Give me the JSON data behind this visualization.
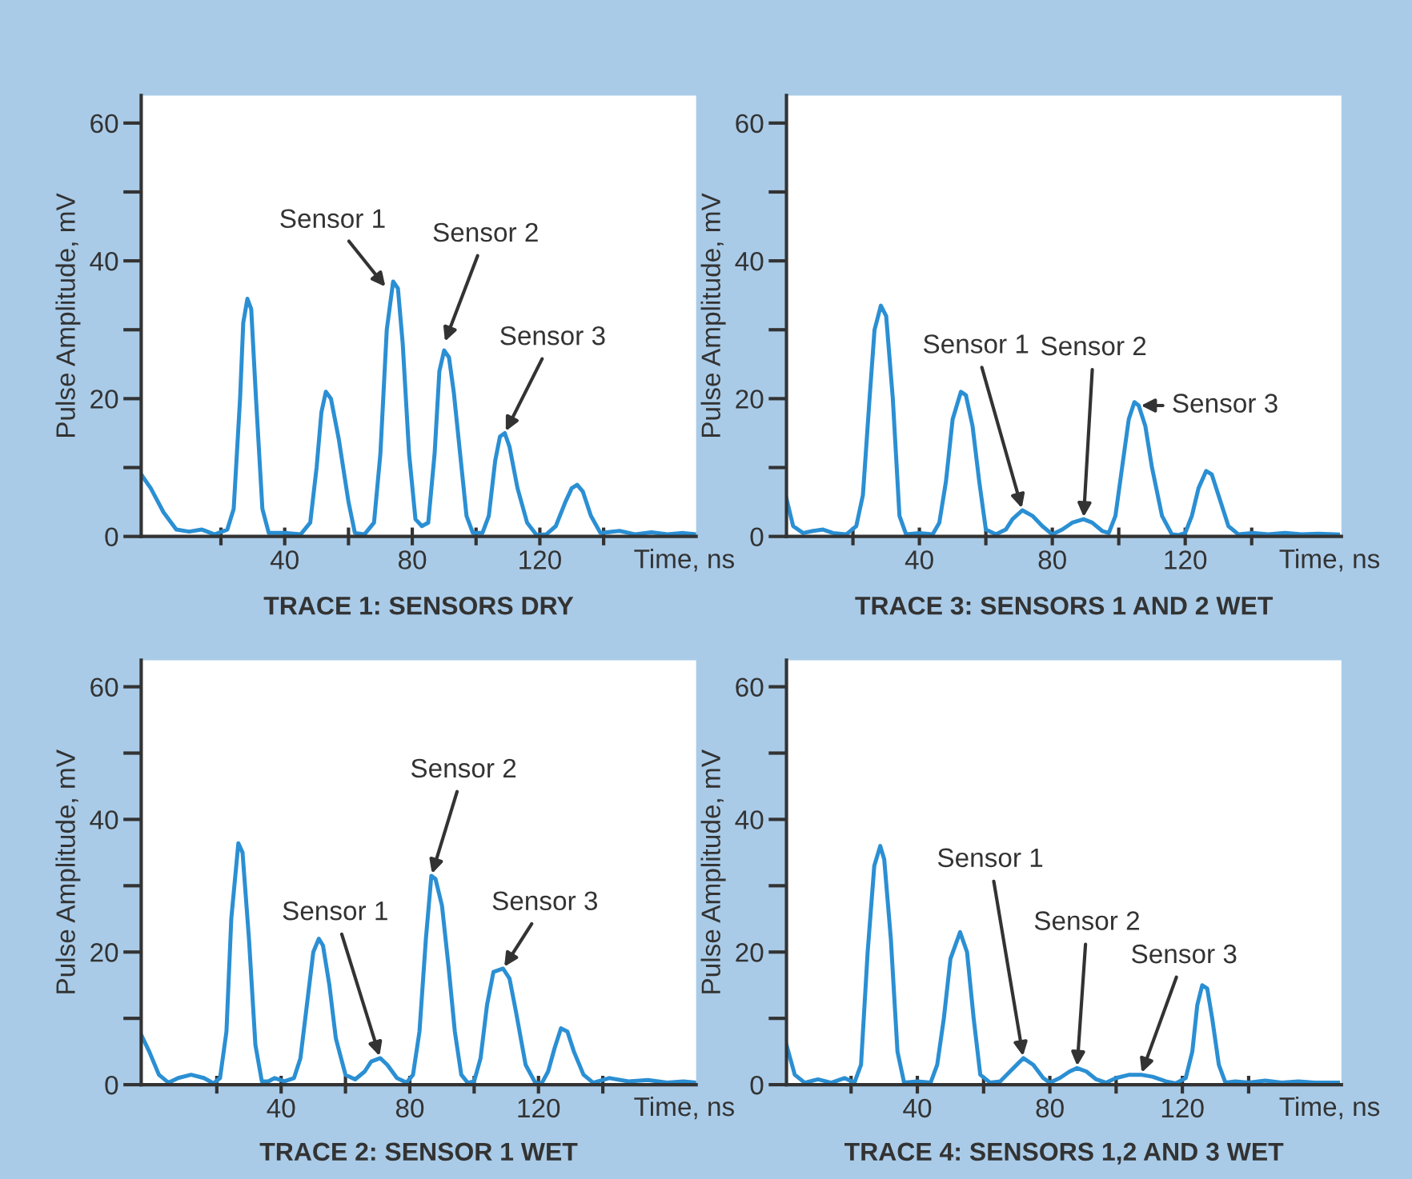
{
  "chart_data": [
    {
      "type": "line",
      "title": "TRACE 1: SENSORS DRY",
      "xlabel": "Time, ns",
      "ylabel": "Pulse Amplitude, mV",
      "xlim": [
        -5,
        169
      ],
      "ylim": [
        0,
        64
      ],
      "xticks": [
        {
          "value": 20,
          "label": null
        },
        40,
        {
          "value": 60,
          "label": null
        },
        80,
        {
          "value": 100,
          "label": null
        },
        120,
        {
          "value": 140,
          "label": null
        }
      ],
      "yticks": [
        0,
        {
          "value": 10,
          "label": null
        },
        20,
        {
          "value": 30,
          "label": null
        },
        40,
        {
          "value": 50,
          "label": null
        },
        60
      ],
      "grid": false,
      "legend": false,
      "marker": "none",
      "line_style": "solid",
      "series": [
        {
          "color": "#2b8fd3",
          "x": [
            -5,
            -2,
            2,
            6,
            10,
            14,
            18,
            22,
            24,
            26,
            27,
            28.3,
            29.5,
            31,
            33,
            35,
            40,
            45,
            48,
            50,
            51.5,
            52.9,
            54.5,
            57,
            60,
            62,
            65,
            68,
            70,
            72,
            74,
            75.5,
            77,
            79,
            81,
            83,
            85,
            87,
            88.5,
            90,
            91.5,
            93,
            95,
            97,
            99,
            102,
            104,
            106,
            107.5,
            109,
            110.5,
            113,
            116,
            119,
            122,
            125,
            128,
            130,
            131.7,
            133.5,
            136,
            139,
            145,
            150,
            155,
            160,
            165,
            169
          ],
          "values": [
            9,
            7,
            3.5,
            1,
            0.7,
            1,
            0.3,
            1,
            4,
            20,
            31,
            34.5,
            33,
            20,
            4,
            0.5,
            0.5,
            0.3,
            2,
            10,
            18,
            21,
            20,
            14,
            5,
            0.5,
            0.3,
            2,
            12,
            30,
            37,
            36,
            28,
            12,
            2.5,
            1.5,
            2,
            12,
            24,
            27,
            26,
            21,
            12,
            3,
            0.5,
            0.5,
            3,
            11,
            14.5,
            15,
            13,
            7,
            2,
            0.2,
            0.3,
            1.5,
            5,
            7,
            7.5,
            6.5,
            3,
            0.5,
            0.8,
            0.3,
            0.6,
            0.3,
            0.5,
            0.3
          ]
        }
      ],
      "annotations": [
        {
          "text": "Sensor 1",
          "x": 72,
          "y": 36
        },
        {
          "text": "Sensor 2",
          "x": 90,
          "y": 28
        },
        {
          "text": "Sensor 3",
          "x": 109,
          "y": 15
        }
      ]
    },
    {
      "type": "line",
      "title": "TRACE 3: SENSORS 1 AND 2 WET",
      "xlabel": "Time, ns",
      "ylabel": "Pulse Amplitude, mV",
      "xlim": [
        0,
        167
      ],
      "ylim": [
        0,
        64
      ],
      "xticks": [
        {
          "value": 20,
          "label": null
        },
        40,
        {
          "value": 60,
          "label": null
        },
        80,
        {
          "value": 100,
          "label": null
        },
        120,
        {
          "value": 140,
          "label": null
        }
      ],
      "yticks": [
        0,
        {
          "value": 10,
          "label": null
        },
        20,
        {
          "value": 30,
          "label": null
        },
        40,
        {
          "value": 50,
          "label": null
        },
        60
      ],
      "grid": false,
      "legend": false,
      "marker": "none",
      "line_style": "solid",
      "series": [
        {
          "color": "#2b8fd3",
          "x": [
            0,
            2,
            5,
            8,
            11,
            14,
            18,
            21,
            23,
            25,
            26.5,
            28.4,
            30,
            32,
            34,
            36,
            40,
            44,
            46,
            48,
            50,
            52.5,
            54,
            56,
            58,
            60,
            63,
            66,
            68,
            71,
            74,
            77,
            80,
            83,
            86,
            89.4,
            92,
            95,
            97,
            99,
            101,
            103,
            104.7,
            106,
            108,
            110,
            113,
            116,
            118,
            120,
            122,
            124,
            126.3,
            128,
            130,
            133,
            136,
            140,
            145,
            150,
            155,
            160,
            166
          ],
          "values": [
            5.5,
            1.5,
            0.5,
            0.8,
            1,
            0.5,
            0.3,
            1.5,
            6,
            20,
            30,
            33.5,
            32,
            20,
            3,
            0.3,
            0.5,
            0.3,
            2,
            8,
            17,
            21,
            20.5,
            16,
            8,
            1,
            0.3,
            1,
            2.5,
            3.8,
            3,
            1.5,
            0.3,
            1,
            2,
            2.5,
            2,
            0.8,
            0.5,
            3,
            10,
            17,
            19.5,
            19,
            16,
            10,
            3,
            0.3,
            0.2,
            0.5,
            3,
            7,
            9.5,
            9,
            6,
            1.5,
            0.3,
            0.5,
            0.3,
            0.5,
            0.3,
            0.4,
            0.3
          ]
        }
      ],
      "annotations": [
        {
          "text": "Sensor 1",
          "x": 71,
          "y": 3.8
        },
        {
          "text": "Sensor 2",
          "x": 89.4,
          "y": 2.5
        },
        {
          "text": "Sensor 3",
          "x": 106,
          "y": 19
        }
      ]
    },
    {
      "type": "line",
      "title": "TRACE 2: SENSOR 1 WET",
      "xlabel": "Time, ns",
      "ylabel": "Pulse Amplitude, mV",
      "xlim": [
        -3.5,
        169
      ],
      "ylim": [
        0,
        64
      ],
      "xticks": [
        {
          "value": 20,
          "label": null
        },
        40,
        {
          "value": 60,
          "label": null
        },
        80,
        {
          "value": 100,
          "label": null
        },
        120,
        {
          "value": 140,
          "label": null
        }
      ],
      "yticks": [
        0,
        {
          "value": 10,
          "label": null
        },
        20,
        {
          "value": 30,
          "label": null
        },
        40,
        {
          "value": 50,
          "label": null
        },
        60
      ],
      "grid": false,
      "legend": false,
      "marker": "none",
      "line_style": "solid",
      "series": [
        {
          "color": "#2b8fd3",
          "x": [
            -3.5,
            -1,
            2,
            5,
            8,
            12,
            16,
            19,
            21,
            23,
            24.5,
            26.7,
            28,
            30,
            32,
            34,
            36,
            38,
            41,
            44,
            46,
            48,
            50,
            51.7,
            53,
            55,
            57,
            60,
            63,
            66,
            68,
            70.8,
            73,
            76,
            79,
            81,
            83,
            85,
            86.7,
            88,
            90,
            92,
            94,
            96,
            98,
            100,
            102,
            104,
            106,
            109,
            111,
            113,
            116,
            119,
            121,
            123,
            125,
            127,
            129,
            131,
            134,
            137,
            142,
            148,
            154,
            160,
            165,
            169
          ],
          "values": [
            7.5,
            5,
            1.5,
            0.3,
            1,
            1.5,
            1,
            0.2,
            1,
            8,
            25,
            36.4,
            35,
            22,
            6,
            0.5,
            0.5,
            1,
            0.5,
            1,
            4,
            12,
            20,
            22,
            21,
            15,
            7,
            1.5,
            0.8,
            2,
            3.5,
            4,
            3,
            1,
            0.3,
            1.5,
            8,
            22,
            31.5,
            31,
            27,
            18,
            8,
            1.5,
            0.3,
            0.5,
            4,
            12,
            17,
            17.5,
            16,
            11,
            3,
            0.3,
            0.2,
            2,
            5.5,
            8.5,
            8,
            5,
            1.5,
            0.3,
            1,
            0.5,
            0.7,
            0.3,
            0.5,
            0.3
          ]
        }
      ],
      "annotations": [
        {
          "text": "Sensor 1",
          "x": 70.8,
          "y": 4
        },
        {
          "text": "Sensor 2",
          "x": 86.7,
          "y": 31.5
        },
        {
          "text": "Sensor 3",
          "x": 109,
          "y": 17.5
        }
      ]
    },
    {
      "type": "line",
      "title": "TRACE 4: SENSORS 1,2 AND 3 WET",
      "xlabel": "Time, ns",
      "ylabel": "Pulse Amplitude, mV",
      "xlim": [
        0.5,
        168
      ],
      "ylim": [
        0,
        64
      ],
      "xticks": [
        {
          "value": 20,
          "label": null
        },
        40,
        {
          "value": 60,
          "label": null
        },
        80,
        {
          "value": 100,
          "label": null
        },
        120,
        {
          "value": 140,
          "label": null
        }
      ],
      "yticks": [
        0,
        {
          "value": 10,
          "label": null
        },
        20,
        {
          "value": 30,
          "label": null
        },
        40,
        {
          "value": 50,
          "label": null
        },
        60
      ],
      "grid": false,
      "legend": false,
      "marker": "none",
      "line_style": "solid",
      "series": [
        {
          "color": "#2b8fd3",
          "x": [
            0.5,
            3,
            6,
            10,
            14,
            18,
            21,
            23,
            25,
            27,
            28.8,
            30,
            32,
            34,
            36,
            40,
            44,
            46,
            48,
            50,
            52.9,
            55,
            57,
            59,
            62,
            65,
            68,
            72,
            75,
            78,
            80,
            83,
            86,
            88.2,
            91,
            94,
            97,
            100,
            104,
            107.5,
            111,
            115,
            118,
            121,
            123,
            124.5,
            126,
            127.5,
            129,
            131,
            133,
            136,
            140,
            145,
            150,
            155,
            160,
            167
          ],
          "values": [
            6,
            1.5,
            0.3,
            0.8,
            0.3,
            1,
            0.3,
            3,
            20,
            33,
            36,
            34,
            22,
            5,
            0.3,
            0.5,
            0.3,
            3,
            10,
            19,
            23,
            20,
            10,
            1.5,
            0.3,
            0.5,
            2,
            4,
            3,
            1,
            0.3,
            1,
            2,
            2.5,
            2,
            0.8,
            0.3,
            1,
            1.5,
            1.5,
            1.2,
            0.5,
            0.2,
            1,
            5,
            12,
            15,
            14.5,
            10,
            3,
            0.3,
            0.5,
            0.3,
            0.6,
            0.3,
            0.5,
            0.3,
            0.3
          ]
        }
      ],
      "annotations": [
        {
          "text": "Sensor 1",
          "x": 72,
          "y": 4
        },
        {
          "text": "Sensor 2",
          "x": 88.2,
          "y": 2.5
        },
        {
          "text": "Sensor 3",
          "x": 107.5,
          "y": 1.5
        }
      ]
    }
  ]
}
